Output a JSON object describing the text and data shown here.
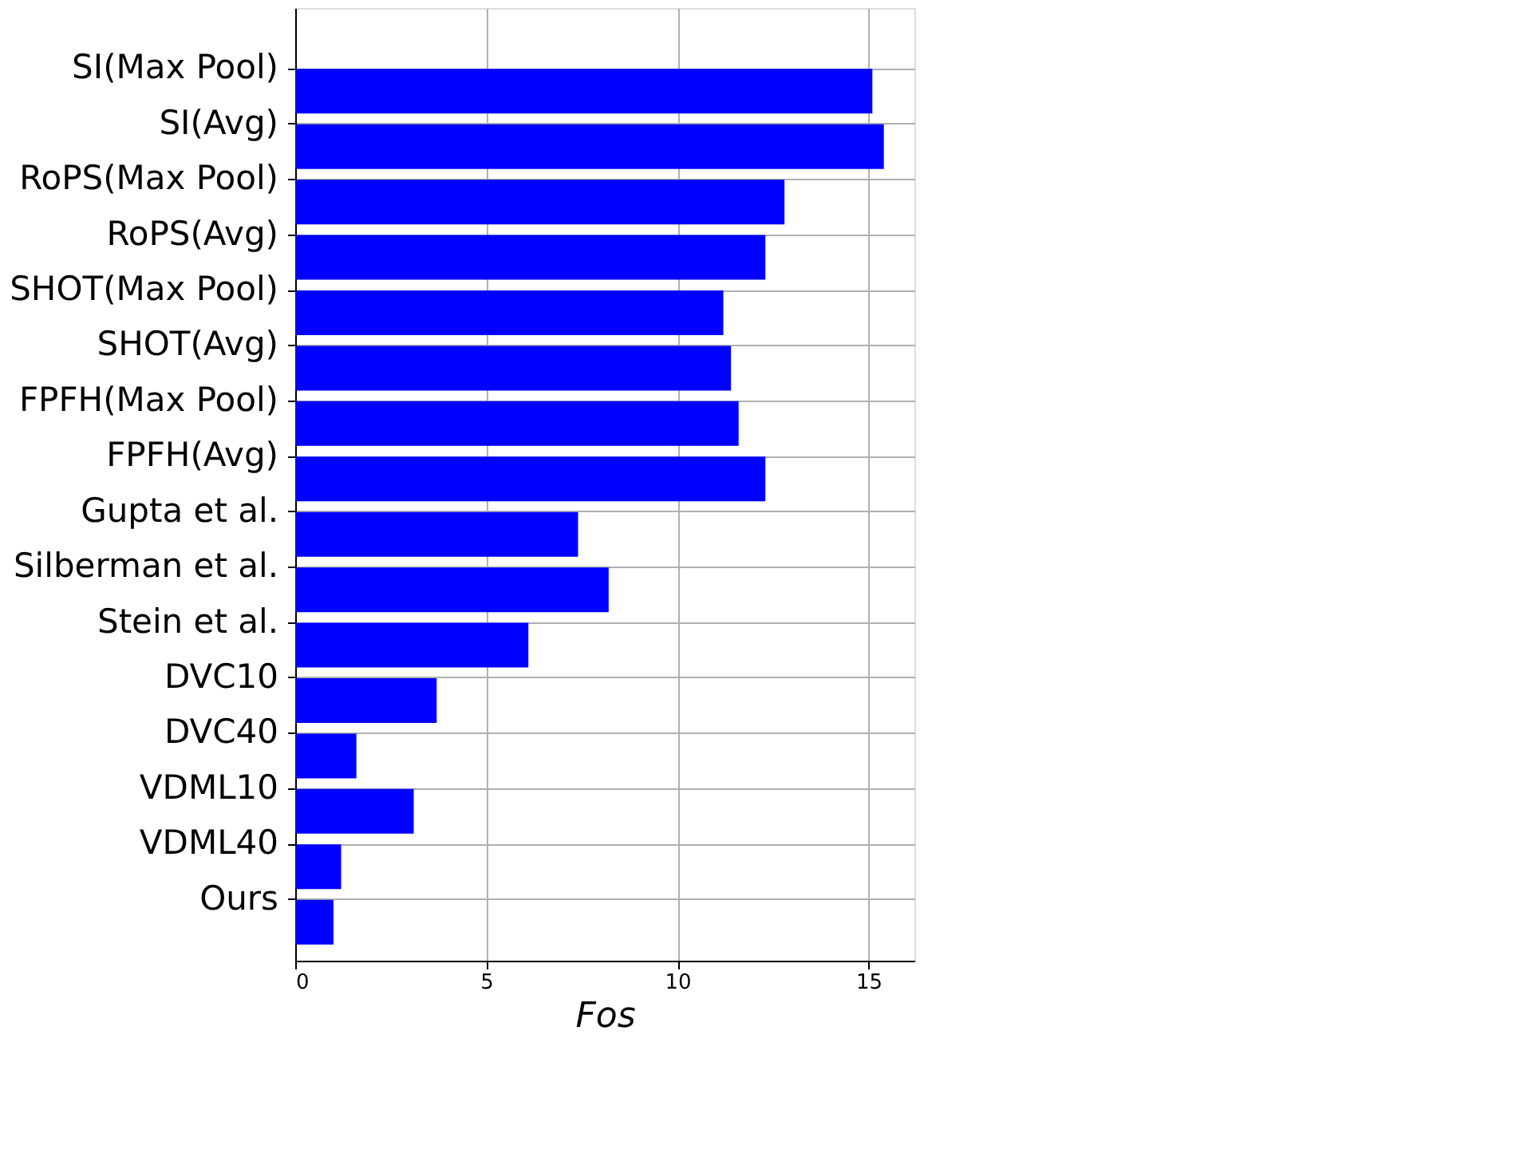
{
  "chart_data": {
    "type": "bar",
    "orientation": "horizontal",
    "xlabel": "Fos",
    "categories": [
      "SI(Max Pool)",
      "SI(Avg)",
      "RoPS(Max Pool)",
      "RoPS(Avg)",
      "SHOT(Max Pool)",
      "SHOT(Avg)",
      "FPFH(Max Pool)",
      "FPFH(Avg)",
      "Gupta et al.",
      "Silberman et al.",
      "Stein et al.",
      "DVC10",
      "DVC40",
      "VDML10",
      "VDML40",
      "Ours"
    ],
    "values": [
      15.1,
      15.4,
      12.8,
      12.3,
      11.2,
      11.4,
      11.6,
      12.3,
      7.4,
      8.2,
      6.1,
      3.7,
      1.6,
      3.1,
      1.2,
      1.0
    ],
    "color": "#0000ff",
    "xlim": [
      0,
      16.2
    ],
    "xticks": [
      0,
      5,
      10,
      15
    ],
    "grid": true
  }
}
